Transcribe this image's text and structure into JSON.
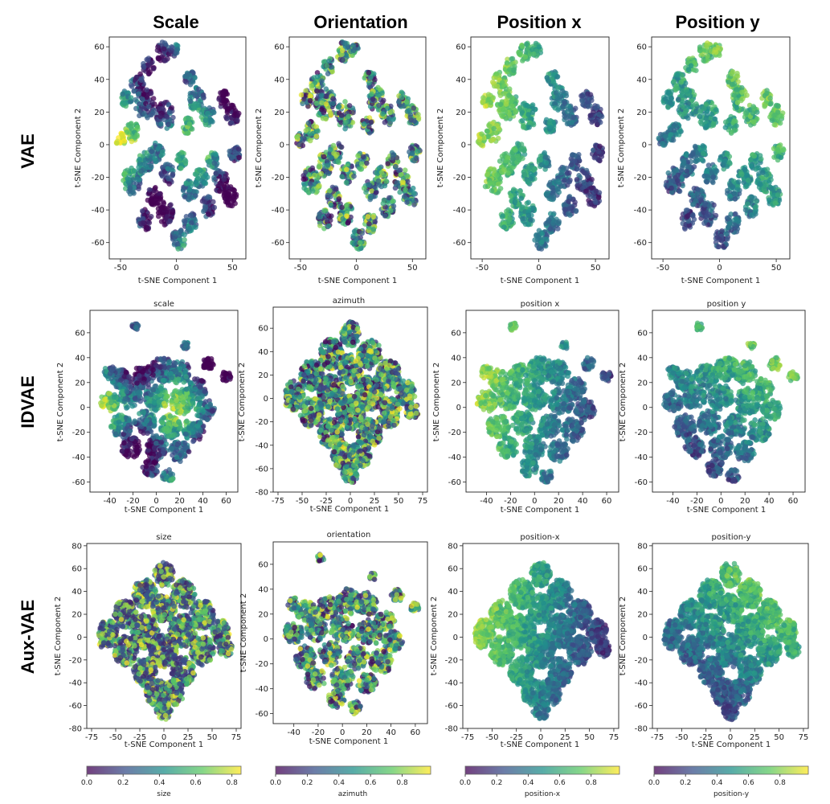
{
  "figure": {
    "column_headers": [
      "Scale",
      "Orientation",
      "Position x",
      "Position y"
    ],
    "row_headers": [
      "VAE",
      "IDVAE",
      "Aux-VAE"
    ]
  },
  "colormap": [
    "#440154",
    "#3b528b",
    "#21918c",
    "#5ec962",
    "#fde725"
  ],
  "chart_data": [
    {
      "type": "scatter",
      "row": 0,
      "col": 0,
      "title": "",
      "xlabel": "t-SNE Component 1",
      "ylabel": "t-SNE Component 2",
      "xlim": [
        -60,
        62
      ],
      "ylim": [
        -70,
        66
      ],
      "xticks": [
        -50,
        0,
        50
      ],
      "yticks": [
        -60,
        -40,
        -20,
        0,
        20,
        40,
        60
      ],
      "shape": "vae",
      "color_by": "scale"
    },
    {
      "type": "scatter",
      "row": 0,
      "col": 1,
      "title": "",
      "xlabel": "t-SNE Component 1",
      "ylabel": "t-SNE Component 2",
      "xlim": [
        -60,
        62
      ],
      "ylim": [
        -70,
        66
      ],
      "xticks": [
        -50,
        0,
        50
      ],
      "yticks": [
        -60,
        -40,
        -20,
        0,
        20,
        40,
        60
      ],
      "shape": "vae",
      "color_by": "orientation"
    },
    {
      "type": "scatter",
      "row": 0,
      "col": 2,
      "title": "",
      "xlabel": "t-SNE Component 1",
      "ylabel": "t-SNE Component 2",
      "xlim": [
        -60,
        62
      ],
      "ylim": [
        -70,
        66
      ],
      "xticks": [
        -50,
        0,
        50
      ],
      "yticks": [
        -60,
        -40,
        -20,
        0,
        20,
        40,
        60
      ],
      "shape": "vae",
      "color_by": "position_x"
    },
    {
      "type": "scatter",
      "row": 0,
      "col": 3,
      "title": "",
      "xlabel": "t-SNE Component 1",
      "ylabel": "t-SNE Component 2",
      "xlim": [
        -60,
        62
      ],
      "ylim": [
        -70,
        66
      ],
      "xticks": [
        -50,
        0,
        50
      ],
      "yticks": [
        -60,
        -40,
        -20,
        0,
        20,
        40,
        60
      ],
      "shape": "vae",
      "color_by": "position_y"
    },
    {
      "type": "scatter",
      "row": 1,
      "col": 0,
      "title": "scale",
      "xlabel": "t-SNE Component 1",
      "ylabel": "t-SNE Component 2",
      "xlim": [
        -57,
        70
      ],
      "ylim": [
        -68,
        78
      ],
      "xticks": [
        -40,
        -20,
        0,
        20,
        40,
        60
      ],
      "yticks": [
        -60,
        -40,
        -20,
        0,
        20,
        40,
        60
      ],
      "shape": "idvae",
      "color_by": "scale"
    },
    {
      "type": "scatter",
      "row": 1,
      "col": 1,
      "title": "azimuth",
      "xlabel": "t-SNE Component 1",
      "ylabel": "t-SNE Component 2",
      "xlim": [
        -80,
        80
      ],
      "ylim": [
        -80,
        78
      ],
      "xticks": [
        -75,
        -50,
        -25,
        0,
        25,
        50,
        75
      ],
      "yticks": [
        -80,
        -60,
        -40,
        -20,
        0,
        20,
        40,
        60
      ],
      "shape": "diamond",
      "color_by": "orientation"
    },
    {
      "type": "scatter",
      "row": 1,
      "col": 2,
      "title": "position x",
      "xlabel": "t-SNE Component 1",
      "ylabel": "t-SNE Component 2",
      "xlim": [
        -57,
        70
      ],
      "ylim": [
        -68,
        78
      ],
      "xticks": [
        -40,
        -20,
        0,
        20,
        40,
        60
      ],
      "yticks": [
        -60,
        -40,
        -20,
        0,
        20,
        40,
        60
      ],
      "shape": "idvae",
      "color_by": "position_x"
    },
    {
      "type": "scatter",
      "row": 1,
      "col": 3,
      "title": "position y",
      "xlabel": "t-SNE Component 1",
      "ylabel": "t-SNE Component 2",
      "xlim": [
        -57,
        70
      ],
      "ylim": [
        -68,
        78
      ],
      "xticks": [
        -40,
        -20,
        0,
        20,
        40,
        60
      ],
      "yticks": [
        -60,
        -40,
        -20,
        0,
        20,
        40,
        60
      ],
      "shape": "idvae",
      "color_by": "position_y"
    },
    {
      "type": "scatter",
      "row": 2,
      "col": 0,
      "title": "size",
      "xlabel": "t-SNE Component 1",
      "ylabel": "t-SNE Component 2",
      "xlim": [
        -80,
        80
      ],
      "ylim": [
        -80,
        82
      ],
      "xticks": [
        -75,
        -50,
        -25,
        0,
        25,
        50,
        75
      ],
      "yticks": [
        -80,
        -60,
        -40,
        -20,
        0,
        20,
        40,
        60,
        80
      ],
      "shape": "diamond",
      "color_by": "size"
    },
    {
      "type": "scatter",
      "row": 2,
      "col": 1,
      "title": "orientation",
      "xlabel": "t-SNE Component 1",
      "ylabel": "t-SNE Component 2",
      "xlim": [
        -57,
        70
      ],
      "ylim": [
        -68,
        78
      ],
      "xticks": [
        -40,
        -20,
        0,
        20,
        40,
        60
      ],
      "yticks": [
        -60,
        -40,
        -20,
        0,
        20,
        40,
        60
      ],
      "shape": "idvae",
      "color_by": "orientation"
    },
    {
      "type": "scatter",
      "row": 2,
      "col": 2,
      "title": "position-x",
      "xlabel": "t-SNE Component 1",
      "ylabel": "t-SNE Component 2",
      "xlim": [
        -80,
        80
      ],
      "ylim": [
        -80,
        82
      ],
      "xticks": [
        -75,
        -50,
        -25,
        0,
        25,
        50,
        75
      ],
      "yticks": [
        -80,
        -60,
        -40,
        -20,
        0,
        20,
        40,
        60,
        80
      ],
      "shape": "diamond",
      "color_by": "position_x"
    },
    {
      "type": "scatter",
      "row": 2,
      "col": 3,
      "title": "position-y",
      "xlabel": "t-SNE Component 1",
      "ylabel": "t-SNE Component 2",
      "xlim": [
        -80,
        80
      ],
      "ylim": [
        -80,
        82
      ],
      "xticks": [
        -75,
        -50,
        -25,
        0,
        25,
        50,
        75
      ],
      "yticks": [
        -80,
        -60,
        -40,
        -20,
        0,
        20,
        40,
        60,
        80
      ],
      "shape": "diamond",
      "color_by": "position_y"
    }
  ],
  "colorbars": [
    {
      "label": "size",
      "ticks": [
        "0.0",
        "0.2",
        "0.4",
        "0.6",
        "0.8"
      ],
      "range": [
        0,
        0.85
      ]
    },
    {
      "label": "azimuth",
      "ticks": [
        "0.0",
        "0.2",
        "0.4",
        "0.6",
        "0.8"
      ],
      "range": [
        0,
        0.98
      ]
    },
    {
      "label": "position-x",
      "ticks": [
        "0.0",
        "0.2",
        "0.4",
        "0.6",
        "0.8"
      ],
      "range": [
        0,
        0.98
      ]
    },
    {
      "label": "position-y",
      "ticks": [
        "0.0",
        "0.2",
        "0.4",
        "0.6",
        "0.8"
      ],
      "range": [
        0,
        0.98
      ]
    }
  ]
}
